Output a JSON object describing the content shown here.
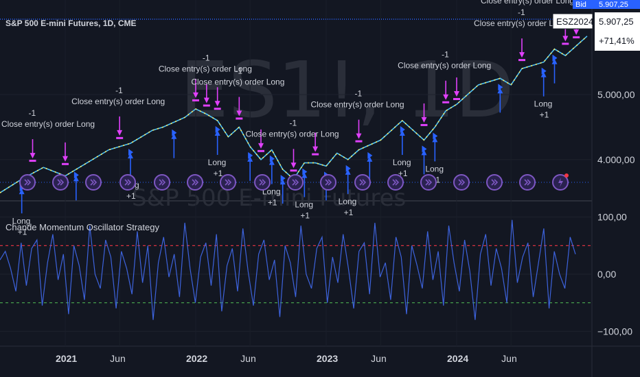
{
  "header": {
    "symbol_title": "S&P 500 E-mini Futures, 1D, CME",
    "watermark_symbol": "ES1!, 1D",
    "watermark_name": "S&P 500 E-mini Futures"
  },
  "price_badges": {
    "bid_tag": "Bid",
    "bid_value": "5.907,25",
    "contract": "ESZ2024",
    "price": "5.907,25",
    "change": "+71,41%"
  },
  "indicator": {
    "title": "Chande Momentum Oscillator Strategy"
  },
  "signal_labels": {
    "long": "Long",
    "long_qty": "+1",
    "close": "Close entry(s) order Long",
    "close_qty": "-1"
  },
  "colors": {
    "background": "#131722",
    "price_line": "#2962ff",
    "cmo_line": "#3d63dd",
    "candle_up": "#4fc3f7",
    "candle_down": "#ffee58",
    "upper_band": "#f23645",
    "lower_band": "#4caf50",
    "entry_arrow": "#2962ff",
    "exit_arrow": "#e040fb",
    "event_icon": "#7e57c2"
  },
  "chart_data": [
    {
      "type": "line",
      "title": "S&P 500 E-mini Futures, 1D, CME",
      "y_ticks": [
        "4.000,00",
        "5.000,00"
      ],
      "ylim": [
        3450,
        6350
      ],
      "x_ticks": [
        "2021",
        "Jun",
        "2022",
        "Jun",
        "2023",
        "Jun",
        "2024",
        "Jun"
      ],
      "x_ticks_bold": [
        true,
        false,
        true,
        false,
        true,
        false,
        true,
        false
      ],
      "xlim_months": [
        -6,
        48
      ],
      "series": [
        {
          "points": [
            [
              -6,
              3490
            ],
            [
              -4,
              3700
            ],
            [
              -2,
              3880
            ],
            [
              0,
              3750
            ],
            [
              2,
              3950
            ],
            [
              4,
              4150
            ],
            [
              6,
              4250
            ],
            [
              8,
              4450
            ],
            [
              9,
              4500
            ],
            [
              11,
              4650
            ],
            [
              12,
              4780
            ],
            [
              13,
              4700
            ],
            [
              14,
              4600
            ],
            [
              15,
              4350
            ],
            [
              16,
              4500
            ],
            [
              17,
              4200
            ],
            [
              18,
              4000
            ],
            [
              19,
              4150
            ],
            [
              20,
              3850
            ],
            [
              21,
              3700
            ],
            [
              22,
              3950
            ],
            [
              23,
              3950
            ],
            [
              24,
              3900
            ],
            [
              25,
              4100
            ],
            [
              26,
              4000
            ],
            [
              27,
              4150
            ],
            [
              29,
              4300
            ],
            [
              30,
              4450
            ],
            [
              31,
              4600
            ],
            [
              32,
              4450
            ],
            [
              33,
              4300
            ],
            [
              34,
              4500
            ],
            [
              35,
              4750
            ],
            [
              36,
              4850
            ],
            [
              38,
              5150
            ],
            [
              40,
              5250
            ],
            [
              41,
              5150
            ],
            [
              42,
              5400
            ],
            [
              44,
              5500
            ],
            [
              45,
              5700
            ],
            [
              46,
              5600
            ],
            [
              48,
              5900
            ]
          ]
        }
      ],
      "signals": {
        "long": [
          [
            -4,
            3700
          ],
          [
            1,
            3900
          ],
          [
            6,
            4250
          ],
          [
            10,
            4550
          ],
          [
            14,
            4600
          ],
          [
            17,
            4200
          ],
          [
            19,
            4150
          ],
          [
            20,
            3850
          ],
          [
            22,
            3950
          ],
          [
            24,
            3900
          ],
          [
            26,
            4000
          ],
          [
            28,
            4200
          ],
          [
            31,
            4600
          ],
          [
            33,
            4300
          ],
          [
            34,
            4500
          ],
          [
            40,
            5250
          ],
          [
            44,
            5500
          ],
          [
            45,
            5700
          ]
        ],
        "close": [
          [
            -3,
            3850
          ],
          [
            0,
            3800
          ],
          [
            5,
            4200
          ],
          [
            12,
            4780
          ],
          [
            13,
            4700
          ],
          [
            14,
            4650
          ],
          [
            16,
            4500
          ],
          [
            18,
            4000
          ],
          [
            21,
            3700
          ],
          [
            23,
            3950
          ],
          [
            27,
            4150
          ],
          [
            33,
            4400
          ],
          [
            35,
            4750
          ],
          [
            36,
            4800
          ],
          [
            42,
            5400
          ],
          [
            46,
            5650
          ],
          [
            47,
            5750
          ]
        ]
      }
    },
    {
      "type": "line",
      "title": "Chande Momentum Oscillator Strategy",
      "y_ticks": [
        "100,00",
        "0,00",
        "−100,00"
      ],
      "ylim": [
        -120,
        120
      ],
      "upper_band": 50,
      "lower_band": -50,
      "series": [
        {
          "values": [
            25,
            40,
            10,
            -30,
            55,
            -20,
            45,
            60,
            -55,
            20,
            70,
            -10,
            35,
            -70,
            50,
            15,
            -45,
            85,
            0,
            -25,
            60,
            30,
            -60,
            40,
            10,
            -35,
            75,
            -15,
            50,
            -80,
            20,
            65,
            -5,
            35,
            -40,
            90,
            10,
            -50,
            30,
            55,
            -20,
            70,
            -65,
            15,
            45,
            -30,
            80,
            5,
            -55,
            35,
            60,
            -10,
            25,
            -75,
            50,
            20,
            -40,
            85,
            0,
            -25,
            45,
            65,
            -50,
            30,
            -15,
            70,
            10,
            -60,
            40,
            55,
            -35,
            90,
            -5,
            20,
            -45,
            65,
            30,
            -70,
            50,
            15,
            -25,
            75,
            -10,
            40,
            -55,
            85,
            20,
            -30,
            60,
            5,
            -80,
            35,
            70,
            -20,
            45,
            10,
            -50,
            95,
            -15,
            30,
            55,
            -40,
            20,
            80,
            -60,
            40,
            0,
            -25,
            65,
            35
          ]
        }
      ]
    }
  ]
}
